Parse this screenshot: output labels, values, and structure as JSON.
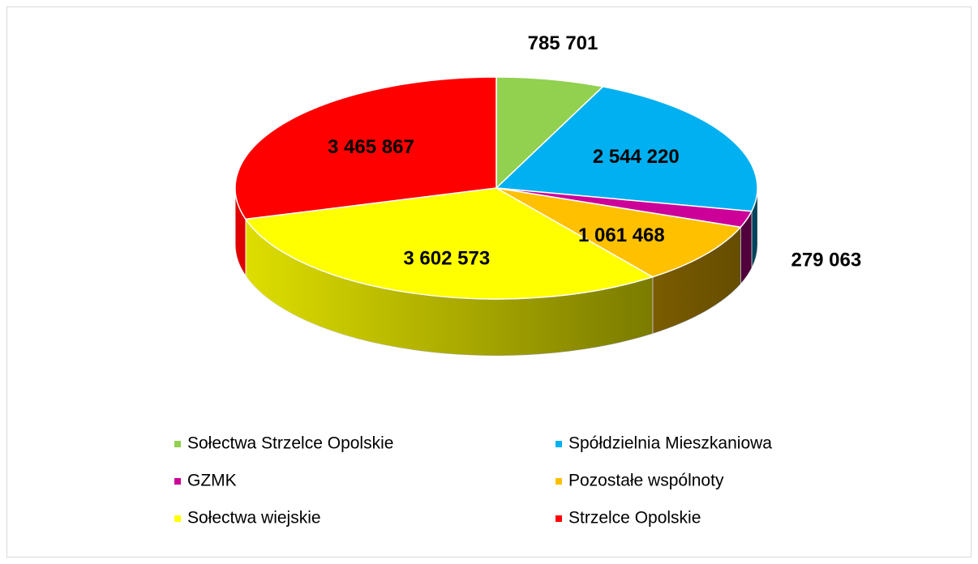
{
  "chart_data": {
    "type": "pie",
    "categories": [
      "Sołectwa Strzelce Opolskie",
      "Spółdzielnia Mieszkaniowa",
      "GZMK",
      "Pozostałe wspólnoty",
      "Sołectwa wiejskie",
      "Strzelce Opolskie"
    ],
    "values": [
      785701,
      2544220,
      279063,
      1061468,
      3602573,
      3465867
    ],
    "value_labels": [
      "785 701",
      "2 544 220",
      "279 063",
      "1 061 468",
      "3 602 573",
      "3 465 867"
    ],
    "colors": [
      "#92d050",
      "#00b0f0",
      "#cc0099",
      "#ffc000",
      "#ffff00",
      "#ff0000"
    ],
    "three_d": true,
    "legend": "bottom"
  }
}
